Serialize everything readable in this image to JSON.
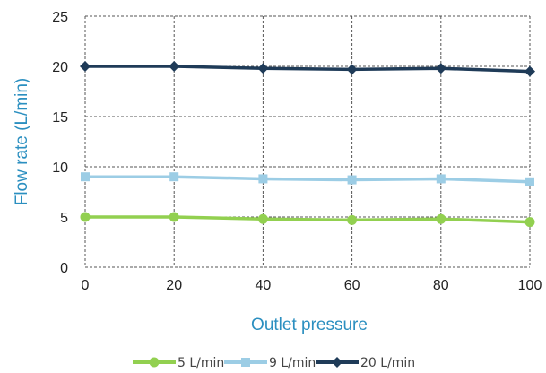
{
  "chart_data": {
    "type": "line",
    "title": "",
    "xlabel": "Outlet pressure",
    "ylabel": "Flow rate (L/min)",
    "x": [
      0,
      20,
      40,
      60,
      80,
      100
    ],
    "xlim": [
      0,
      100
    ],
    "ylim": [
      0,
      25
    ],
    "yticks": [
      0,
      5,
      10,
      15,
      20,
      25
    ],
    "grid": true,
    "legend_position": "bottom",
    "series": [
      {
        "name": "5 L/min",
        "color": "#92d050",
        "marker": "circle",
        "values": [
          5.0,
          5.0,
          4.8,
          4.7,
          4.8,
          4.5
        ]
      },
      {
        "name": "9 L/min",
        "color": "#9ccde5",
        "marker": "square",
        "values": [
          9.0,
          9.0,
          8.8,
          8.7,
          8.8,
          8.5
        ]
      },
      {
        "name": "20 L/min",
        "color": "#1f3b58",
        "marker": "diamond",
        "values": [
          20.0,
          20.0,
          19.8,
          19.7,
          19.8,
          19.5
        ]
      }
    ]
  }
}
